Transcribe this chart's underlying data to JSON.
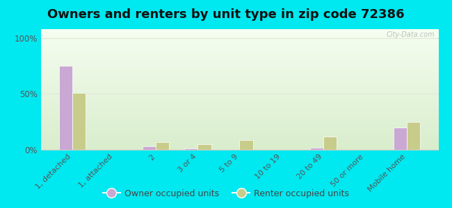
{
  "title": "Owners and renters by unit type in zip code 72386",
  "categories": [
    "1, detached",
    "1, attached",
    "2",
    "3 or 4",
    "5 to 9",
    "10 to 19",
    "20 to 49",
    "50 or more",
    "Mobile home"
  ],
  "owner_values": [
    75,
    0,
    3,
    1,
    0,
    0,
    2,
    0,
    20
  ],
  "renter_values": [
    51,
    0,
    7,
    5,
    9,
    0,
    12,
    0,
    25
  ],
  "owner_color": "#c9a8d4",
  "renter_color": "#c8cc8a",
  "background_color": "#00e8f0",
  "plot_bg_top": "#f5fdf0",
  "plot_bg_bottom": "#d8edcc",
  "yticks": [
    0,
    50,
    100
  ],
  "ylabels": [
    "0%",
    "50%",
    "100%"
  ],
  "ylim": [
    0,
    108
  ],
  "bar_width": 0.32,
  "title_fontsize": 13,
  "legend_owner": "Owner occupied units",
  "legend_renter": "Renter occupied units",
  "watermark": "City-Data.com",
  "grid_color": "#e0e8d8",
  "spine_color": "#cccccc"
}
